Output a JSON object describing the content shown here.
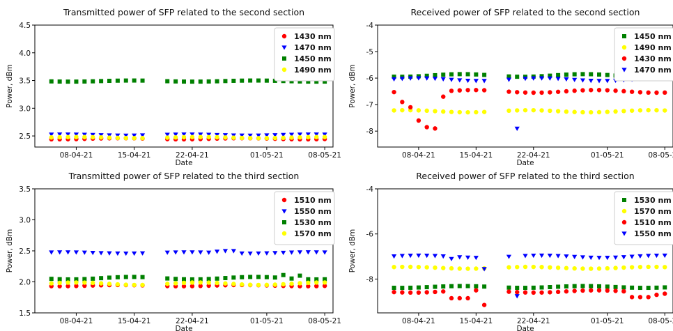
{
  "chart_data": [
    {
      "type": "scatter",
      "title": "Transmitted power of SFP related to the second section",
      "xlabel": "Date",
      "ylabel": "Power, dBm",
      "ylim": [
        2.3,
        4.5
      ],
      "yticks": [
        "2.5",
        "3.0",
        "3.5",
        "4.0",
        "4.5"
      ],
      "xlim": [
        "2021-04-03",
        "2021-05-09"
      ],
      "xticks": [
        "08-04-21",
        "15-04-21",
        "22-04-21",
        "01-05-21",
        "08-05-21"
      ],
      "legend_position": "top-right",
      "gaps": [
        [
          "2021-04-17",
          "2021-04-18"
        ]
      ],
      "series": [
        {
          "name": "1430 nm",
          "color": "#ff0000",
          "marker": "circle",
          "base": 2.45,
          "noise": 0.01
        },
        {
          "name": "1470 nm",
          "color": "#0000ff",
          "marker": "triangle-down",
          "base": 2.52,
          "noise": 0.01
        },
        {
          "name": "1450 nm",
          "color": "#008000",
          "marker": "square",
          "base": 3.49,
          "noise": 0.01
        },
        {
          "name": "1490 nm",
          "color": "#ffff00",
          "marker": "circle",
          "base": 2.47,
          "noise": 0.01
        }
      ]
    },
    {
      "type": "scatter",
      "title": "Received power of SFP related to the second section",
      "xlabel": "Date",
      "ylabel": "Power, dBm",
      "ylim": [
        -8.6,
        -4
      ],
      "yticks": [
        "-8",
        "-7",
        "-6",
        "-5",
        "-4"
      ],
      "xlim": [
        "2021-04-03",
        "2021-05-09"
      ],
      "xticks": [
        "08-04-21",
        "15-04-21",
        "22-04-21",
        "01-05-21",
        "08-05-21"
      ],
      "legend_position": "top-right",
      "gaps": [
        [
          "2021-04-17",
          "2021-04-18"
        ]
      ],
      "series": [
        {
          "name": "1450 nm",
          "color": "#008000",
          "marker": "square",
          "base": -5.9,
          "noise": 0.05
        },
        {
          "name": "1490 nm",
          "color": "#ffff00",
          "marker": "circle",
          "base": -7.25,
          "noise": 0.04
        },
        {
          "name": "1430 nm",
          "color": "#ff0000",
          "marker": "circle",
          "base": -6.5,
          "noise": 0.05,
          "overrides": {
            "2021-04-06": -6.9,
            "2021-04-07": -7.1,
            "2021-04-08": -7.6,
            "2021-04-09": -7.85,
            "2021-04-10": -7.9,
            "2021-04-11": -6.7
          }
        },
        {
          "name": "1470 nm",
          "color": "#0000ff",
          "marker": "triangle-down",
          "base": -6.05,
          "noise": 0.05,
          "overrides": {
            "2021-04-20": -7.9
          }
        }
      ]
    },
    {
      "type": "scatter",
      "title": "Transmitted power of SFP related to the third section",
      "xlabel": "Date",
      "ylabel": "Power, dBm",
      "ylim": [
        1.5,
        3.5
      ],
      "yticks": [
        "1.5",
        "2.0",
        "2.5",
        "3.0",
        "3.5"
      ],
      "xlim": [
        "2021-04-03",
        "2021-05-09"
      ],
      "xticks": [
        "08-04-21",
        "15-04-21",
        "22-04-21",
        "01-05-21",
        "08-05-21"
      ],
      "legend_position": "top-right",
      "gaps": [
        [
          "2021-04-17",
          "2021-04-18"
        ]
      ],
      "series": [
        {
          "name": "1510 nm",
          "color": "#ff0000",
          "marker": "circle",
          "base": 1.94,
          "noise": 0.01
        },
        {
          "name": "1550 nm",
          "color": "#0000ff",
          "marker": "triangle-down",
          "base": 2.47,
          "noise": 0.01,
          "overrides": {
            "2021-04-25": 2.49,
            "2021-04-26": 2.5,
            "2021-04-27": 2.5
          }
        },
        {
          "name": "1530 nm",
          "color": "#008000",
          "marker": "square",
          "base": 2.06,
          "noise": 0.02,
          "overrides": {
            "2021-05-03": 2.11,
            "2021-05-05": 2.1
          }
        },
        {
          "name": "1570 nm",
          "color": "#ffff00",
          "marker": "circle",
          "base": 1.97,
          "noise": 0.02,
          "overrides": {
            "2021-04-18": 2.0
          }
        }
      ]
    },
    {
      "type": "scatter",
      "title": "Received power of SFP related to the third section",
      "xlabel": "Date",
      "ylabel": "Power, dBm",
      "ylim": [
        -9.5,
        -4
      ],
      "yticks": [
        "-8",
        "-6",
        "-4"
      ],
      "xlim": [
        "2021-04-03",
        "2021-05-09"
      ],
      "xticks": [
        "08-04-21",
        "15-04-21",
        "22-04-21",
        "01-05-21",
        "08-05-21"
      ],
      "legend_position": "top-right",
      "gaps": [
        [
          "2021-04-17",
          "2021-04-18"
        ]
      ],
      "series": [
        {
          "name": "1530 nm",
          "color": "#008000",
          "marker": "square",
          "base": -8.35,
          "noise": 0.04
        },
        {
          "name": "1570 nm",
          "color": "#ffff00",
          "marker": "circle",
          "base": -7.5,
          "noise": 0.04
        },
        {
          "name": "1510 nm",
          "color": "#ff0000",
          "marker": "circle",
          "base": -8.55,
          "noise": 0.05,
          "overrides": {
            "2021-04-12": -8.85,
            "2021-04-13": -8.85,
            "2021-04-14": -8.85,
            "2021-04-16": -9.15,
            "2021-05-04": -8.8,
            "2021-05-05": -8.8,
            "2021-05-06": -8.8,
            "2021-05-07": -8.7,
            "2021-05-08": -8.65
          }
        },
        {
          "name": "1550 nm",
          "color": "#0000ff",
          "marker": "triangle-down",
          "base": -7.0,
          "noise": 0.05,
          "overrides": {
            "2021-04-12": -7.1,
            "2021-04-16": -7.55,
            "2021-04-20": -8.75
          }
        }
      ]
    }
  ]
}
